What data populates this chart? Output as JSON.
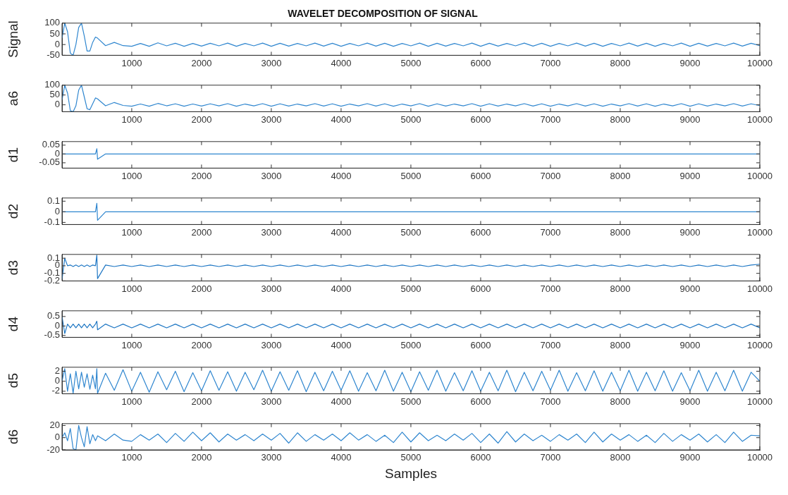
{
  "chart_data": [
    {
      "type": "line",
      "title": "WAVELET DECOMPOSITION OF SIGNAL",
      "ylabel": "Signal",
      "color": "#2f86cf",
      "xlim": [
        1,
        10000
      ],
      "xticks": [
        1000,
        2000,
        3000,
        4000,
        5000,
        6000,
        7000,
        8000,
        9000,
        10000
      ],
      "ylim": [
        -50,
        100
      ],
      "yticks": [
        -50,
        0,
        50,
        100
      ],
      "x": [
        1,
        40,
        80,
        120,
        160,
        200,
        240,
        280,
        320,
        360,
        400,
        440,
        480,
        500,
        510,
        625,
        750,
        875,
        1000,
        1125,
        1250,
        1375,
        1500,
        1625,
        1750,
        1875,
        2000,
        2125,
        2250,
        2375,
        2500,
        2625,
        2750,
        2875,
        3000,
        3125,
        3250,
        3375,
        3500,
        3625,
        3750,
        3875,
        4000,
        4125,
        4250,
        4375,
        4500,
        4625,
        4750,
        4875,
        5000,
        5125,
        5250,
        5375,
        5500,
        5625,
        5750,
        5875,
        6000,
        6125,
        6250,
        6375,
        6500,
        6625,
        6750,
        6875,
        7000,
        7125,
        7250,
        7375,
        7500,
        7625,
        7750,
        7875,
        8000,
        8125,
        8250,
        8375,
        8500,
        8625,
        8750,
        8875,
        9000,
        9125,
        9250,
        9375,
        9500,
        9625,
        9750,
        9875,
        10000
      ],
      "values": [
        30,
        100,
        60,
        -40,
        -50,
        0,
        80,
        100,
        40,
        -30,
        -30,
        10,
        35,
        32,
        30,
        -5,
        10,
        -5,
        -8,
        5,
        -8,
        8,
        -6,
        6,
        -8,
        5,
        -7,
        6,
        -6,
        7,
        -8,
        5,
        -6,
        7,
        -8,
        6,
        -7,
        5,
        -6,
        7,
        -7,
        6,
        -8,
        5,
        -6,
        7,
        -7,
        6,
        -8,
        5,
        -6,
        7,
        -8,
        6,
        -7,
        5,
        -6,
        7,
        -8,
        6,
        -7,
        5,
        -6,
        7,
        -7,
        6,
        -8,
        5,
        -6,
        7,
        -7,
        6,
        -8,
        5,
        -6,
        7,
        -7,
        6,
        -8,
        5,
        -6,
        7,
        -8,
        6,
        -7,
        5,
        -6,
        7,
        -7,
        6,
        -5
      ]
    },
    {
      "type": "line",
      "ylabel": "a6",
      "color": "#2f86cf",
      "xlim": [
        1,
        10000
      ],
      "xticks": [
        1000,
        2000,
        3000,
        4000,
        5000,
        6000,
        7000,
        8000,
        9000,
        10000
      ],
      "ylim": [
        -35,
        100
      ],
      "yticks": [
        0,
        50,
        100
      ],
      "x": [
        1,
        40,
        80,
        120,
        160,
        200,
        240,
        280,
        320,
        360,
        400,
        440,
        480,
        500,
        510,
        625,
        750,
        875,
        1000,
        1125,
        1250,
        1375,
        1500,
        1625,
        1750,
        1875,
        2000,
        2125,
        2250,
        2375,
        2500,
        2625,
        2750,
        2875,
        3000,
        3125,
        3250,
        3375,
        3500,
        3625,
        3750,
        3875,
        4000,
        4125,
        4250,
        4375,
        4500,
        4625,
        4750,
        4875,
        5000,
        5125,
        5250,
        5375,
        5500,
        5625,
        5750,
        5875,
        6000,
        6125,
        6250,
        6375,
        6500,
        6625,
        6750,
        6875,
        7000,
        7125,
        7250,
        7375,
        7500,
        7625,
        7750,
        7875,
        8000,
        8125,
        8250,
        8375,
        8500,
        8625,
        8750,
        8875,
        9000,
        9125,
        9250,
        9375,
        9500,
        9625,
        9750,
        9875,
        10000
      ],
      "values": [
        25,
        100,
        60,
        -30,
        -35,
        -5,
        75,
        100,
        40,
        -20,
        -25,
        5,
        35,
        32,
        30,
        -5,
        12,
        -3,
        -7,
        4,
        -7,
        7,
        -5,
        5,
        -7,
        4,
        -6,
        5,
        -5,
        6,
        -7,
        4,
        -5,
        6,
        -7,
        5,
        -6,
        4,
        -5,
        6,
        -6,
        5,
        -7,
        4,
        -5,
        6,
        -6,
        5,
        -7,
        4,
        -5,
        6,
        -7,
        5,
        -6,
        4,
        -5,
        6,
        -7,
        5,
        -6,
        4,
        -5,
        6,
        -6,
        5,
        -7,
        4,
        -5,
        6,
        -6,
        5,
        -7,
        4,
        -5,
        6,
        -6,
        5,
        -7,
        4,
        -5,
        6,
        -7,
        5,
        -6,
        4,
        -5,
        6,
        -6,
        5,
        -4
      ]
    },
    {
      "type": "line",
      "ylabel": "d1",
      "color": "#2f86cf",
      "xlim": [
        1,
        10000
      ],
      "xticks": [
        1000,
        2000,
        3000,
        4000,
        5000,
        6000,
        7000,
        8000,
        9000,
        10000
      ],
      "ylim": [
        -0.08,
        0.07
      ],
      "yticks": [
        -0.05,
        0,
        0.05
      ],
      "x": [
        1,
        40,
        80,
        120,
        160,
        200,
        240,
        280,
        320,
        360,
        400,
        440,
        480,
        500,
        510,
        625,
        750,
        875,
        1000,
        1125,
        1250,
        1375,
        1500,
        1625,
        1750,
        1875,
        2000,
        2125,
        2250,
        2375,
        2500,
        2625,
        2750,
        2875,
        3000,
        3125,
        3250,
        3375,
        3500,
        3625,
        3750,
        3875,
        4000,
        4125,
        4250,
        4375,
        4500,
        4625,
        4750,
        4875,
        5000,
        5125,
        5250,
        5375,
        5500,
        5625,
        5750,
        5875,
        6000,
        6125,
        6250,
        6375,
        6500,
        6625,
        6750,
        6875,
        7000,
        7125,
        7250,
        7375,
        7500,
        7625,
        7750,
        7875,
        8000,
        8125,
        8250,
        8375,
        8500,
        8625,
        8750,
        8875,
        9000,
        9125,
        9250,
        9375,
        9500,
        9625,
        9750,
        9875,
        10000
      ],
      "values": [
        0,
        0,
        0,
        0,
        0,
        0,
        0,
        0,
        0,
        0,
        0,
        0,
        0,
        0.03,
        -0.03,
        0,
        0,
        0,
        0,
        0,
        0,
        0,
        0,
        0,
        0,
        0,
        0,
        0,
        0,
        0,
        0,
        0,
        0,
        0,
        0,
        0,
        0,
        0,
        0,
        0,
        0,
        0,
        0,
        0,
        0,
        0,
        0,
        0,
        0,
        0,
        0,
        0,
        0,
        0,
        0,
        0,
        0,
        0,
        0,
        0,
        0,
        0,
        0,
        0,
        0,
        0,
        0,
        0,
        0,
        0,
        0,
        0,
        0,
        0,
        0,
        0,
        0,
        0,
        0,
        0,
        0,
        0,
        0,
        0,
        0,
        0,
        0,
        0,
        0,
        0,
        0
      ]
    },
    {
      "type": "line",
      "ylabel": "d2",
      "color": "#2f86cf",
      "xlim": [
        1,
        10000
      ],
      "xticks": [
        1000,
        2000,
        3000,
        4000,
        5000,
        6000,
        7000,
        8000,
        9000,
        10000
      ],
      "ylim": [
        -0.12,
        0.13
      ],
      "yticks": [
        -0.1,
        0,
        0.1
      ],
      "x": [
        1,
        40,
        80,
        120,
        160,
        200,
        240,
        280,
        320,
        360,
        400,
        440,
        480,
        500,
        510,
        625,
        750,
        875,
        1000,
        1125,
        1250,
        1375,
        1500,
        1625,
        1750,
        1875,
        2000,
        2125,
        2250,
        2375,
        2500,
        2625,
        2750,
        2875,
        3000,
        3125,
        3250,
        3375,
        3500,
        3625,
        3750,
        3875,
        4000,
        4125,
        4250,
        4375,
        4500,
        4625,
        4750,
        4875,
        5000,
        5125,
        5250,
        5375,
        5500,
        5625,
        5750,
        5875,
        6000,
        6125,
        6250,
        6375,
        6500,
        6625,
        6750,
        6875,
        7000,
        7125,
        7250,
        7375,
        7500,
        7625,
        7750,
        7875,
        8000,
        8125,
        8250,
        8375,
        8500,
        8625,
        8750,
        8875,
        9000,
        9125,
        9250,
        9375,
        9500,
        9625,
        9750,
        9875,
        10000
      ],
      "values": [
        0,
        0,
        0,
        0,
        0,
        0,
        0,
        0,
        0,
        0,
        0,
        0,
        0,
        0.08,
        -0.08,
        0,
        0,
        0,
        0,
        0,
        0,
        0,
        0,
        0,
        0,
        0,
        0,
        0,
        0,
        0,
        0,
        0,
        0,
        0,
        0,
        0,
        0,
        0,
        0,
        0,
        0,
        0,
        0,
        0,
        0,
        0,
        0,
        0,
        0,
        0,
        0,
        0,
        0,
        0,
        0,
        0,
        0,
        0,
        0,
        0,
        0,
        0,
        0,
        0,
        0,
        0,
        0,
        0,
        0,
        0,
        0,
        0,
        0,
        0,
        0,
        0,
        0,
        0,
        0,
        0,
        0,
        0,
        0,
        0,
        0,
        0,
        0,
        0,
        0,
        0,
        0
      ]
    },
    {
      "type": "line",
      "ylabel": "d3",
      "color": "#1f77c4",
      "xlim": [
        1,
        10000
      ],
      "xticks": [
        1000,
        2000,
        3000,
        4000,
        5000,
        6000,
        7000,
        8000,
        9000,
        10000
      ],
      "ylim": [
        -0.2,
        0.15
      ],
      "yticks": [
        -0.2,
        -0.1,
        0,
        0.1
      ],
      "x": [
        1,
        40,
        80,
        120,
        160,
        200,
        240,
        280,
        320,
        360,
        400,
        440,
        480,
        500,
        510,
        625,
        750,
        875,
        1000,
        1125,
        1250,
        1375,
        1500,
        1625,
        1750,
        1875,
        2000,
        2125,
        2250,
        2375,
        2500,
        2625,
        2750,
        2875,
        3000,
        3125,
        3250,
        3375,
        3500,
        3625,
        3750,
        3875,
        4000,
        4125,
        4250,
        4375,
        4500,
        4625,
        4750,
        4875,
        5000,
        5125,
        5250,
        5375,
        5500,
        5625,
        5750,
        5875,
        6000,
        6125,
        6250,
        6375,
        6500,
        6625,
        6750,
        6875,
        7000,
        7125,
        7250,
        7375,
        7500,
        7625,
        7750,
        7875,
        8000,
        8125,
        8250,
        8375,
        8500,
        8625,
        8750,
        8875,
        9000,
        9125,
        9250,
        9375,
        9500,
        9625,
        9750,
        9875,
        10000
      ],
      "values": [
        -0.18,
        0.1,
        0,
        0.01,
        -0.01,
        0.01,
        -0.01,
        0.01,
        -0.01,
        0.01,
        -0.01,
        0.01,
        0,
        0.14,
        -0.17,
        0.01,
        -0.01,
        0.01,
        -0.01,
        0.01,
        -0.01,
        0.01,
        -0.01,
        0.01,
        -0.01,
        0.01,
        -0.01,
        0.01,
        -0.01,
        0.01,
        -0.01,
        0.01,
        -0.01,
        0.01,
        -0.01,
        0.01,
        -0.01,
        0.01,
        -0.01,
        0.01,
        -0.01,
        0.01,
        -0.01,
        0.01,
        -0.01,
        0.01,
        -0.01,
        0.01,
        -0.01,
        0.01,
        -0.01,
        0.01,
        -0.01,
        0.01,
        -0.01,
        0.01,
        -0.01,
        0.01,
        -0.01,
        0.01,
        -0.01,
        0.01,
        -0.01,
        0.01,
        -0.01,
        0.01,
        -0.01,
        0.01,
        -0.01,
        0.01,
        -0.01,
        0.01,
        -0.01,
        0.01,
        -0.01,
        0.01,
        -0.01,
        0.01,
        -0.01,
        0.01,
        -0.01,
        0.01,
        -0.01,
        0.01,
        -0.01,
        0.01,
        -0.01,
        0.01,
        -0.01,
        0.01,
        0.02
      ]
    },
    {
      "type": "line",
      "ylabel": "d4",
      "color": "#1f77c4",
      "xlim": [
        1,
        10000
      ],
      "xticks": [
        1000,
        2000,
        3000,
        4000,
        5000,
        6000,
        7000,
        8000,
        9000,
        10000
      ],
      "ylim": [
        -0.6,
        0.8
      ],
      "yticks": [
        -0.5,
        0,
        0.5
      ],
      "x": [
        1,
        40,
        80,
        120,
        160,
        200,
        240,
        280,
        320,
        360,
        400,
        440,
        480,
        500,
        510,
        625,
        750,
        875,
        1000,
        1125,
        1250,
        1375,
        1500,
        1625,
        1750,
        1875,
        2000,
        2125,
        2250,
        2375,
        2500,
        2625,
        2750,
        2875,
        3000,
        3125,
        3250,
        3375,
        3500,
        3625,
        3750,
        3875,
        4000,
        4125,
        4250,
        4375,
        4500,
        4625,
        4750,
        4875,
        5000,
        5125,
        5250,
        5375,
        5500,
        5625,
        5750,
        5875,
        6000,
        6125,
        6250,
        6375,
        6500,
        6625,
        6750,
        6875,
        7000,
        7125,
        7250,
        7375,
        7500,
        7625,
        7750,
        7875,
        8000,
        8125,
        8250,
        8375,
        8500,
        8625,
        8750,
        8875,
        9000,
        9125,
        9250,
        9375,
        9500,
        9625,
        9750,
        9875,
        10000
      ],
      "values": [
        0.5,
        -0.4,
        0.1,
        -0.1,
        0.1,
        -0.1,
        0.1,
        -0.1,
        0.1,
        -0.1,
        0.1,
        -0.1,
        0.1,
        0.25,
        -0.2,
        0.1,
        -0.1,
        0.1,
        -0.1,
        0.1,
        -0.1,
        0.1,
        -0.1,
        0.1,
        -0.1,
        0.1,
        -0.1,
        0.1,
        -0.1,
        0.1,
        -0.1,
        0.1,
        -0.1,
        0.1,
        -0.1,
        0.1,
        -0.1,
        0.1,
        -0.1,
        0.1,
        -0.1,
        0.1,
        -0.1,
        0.1,
        -0.1,
        0.1,
        -0.1,
        0.1,
        -0.1,
        0.1,
        -0.1,
        0.1,
        -0.1,
        0.1,
        -0.1,
        0.1,
        -0.1,
        0.1,
        -0.1,
        0.1,
        -0.1,
        0.1,
        -0.1,
        0.1,
        -0.1,
        0.1,
        -0.1,
        0.1,
        -0.1,
        0.1,
        -0.1,
        0.1,
        -0.1,
        0.1,
        -0.1,
        0.1,
        -0.1,
        0.1,
        -0.1,
        0.1,
        -0.1,
        0.1,
        -0.1,
        0.1,
        -0.1,
        0.1,
        -0.1,
        0.1,
        -0.1,
        0.1,
        -0.1
      ]
    },
    {
      "type": "line",
      "ylabel": "d5",
      "color": "#2f86cf",
      "xlim": [
        1,
        10000
      ],
      "xticks": [
        1000,
        2000,
        3000,
        4000,
        5000,
        6000,
        7000,
        8000,
        9000,
        10000
      ],
      "ylim": [
        -2.5,
        2.8
      ],
      "yticks": [
        -2,
        0,
        2
      ],
      "x": [
        1,
        40,
        80,
        120,
        160,
        200,
        240,
        280,
        320,
        360,
        400,
        440,
        480,
        500,
        510,
        625,
        750,
        875,
        1000,
        1125,
        1250,
        1375,
        1500,
        1625,
        1750,
        1875,
        2000,
        2125,
        2250,
        2375,
        2500,
        2625,
        2750,
        2875,
        3000,
        3125,
        3250,
        3375,
        3500,
        3625,
        3750,
        3875,
        4000,
        4125,
        4250,
        4375,
        4500,
        4625,
        4750,
        4875,
        5000,
        5125,
        5250,
        5375,
        5500,
        5625,
        5750,
        5875,
        6000,
        6125,
        6250,
        6375,
        6500,
        6625,
        6750,
        6875,
        7000,
        7125,
        7250,
        7375,
        7500,
        7625,
        7750,
        7875,
        8000,
        8125,
        8250,
        8375,
        8500,
        8625,
        8750,
        8875,
        9000,
        9125,
        9250,
        9375,
        9500,
        9625,
        9750,
        9875,
        10000
      ],
      "values": [
        0,
        2.5,
        -2,
        1.5,
        -2.4,
        2,
        -1.5,
        1.8,
        -1.2,
        1.5,
        -1.6,
        1.2,
        -1.5,
        2.5,
        -2.4,
        1.6,
        -1.8,
        2.3,
        -2,
        1.8,
        -2.2,
        1.9,
        -1.7,
        2,
        -2.1,
        1.7,
        -1.9,
        2.1,
        -1.8,
        1.9,
        -2,
        1.8,
        -1.7,
        2.2,
        -2,
        1.9,
        -1.8,
        2.1,
        -2.1,
        1.8,
        -1.9,
        2,
        -1.8,
        2.1,
        -2,
        1.7,
        -1.9,
        2.2,
        -2,
        1.8,
        -2.1,
        1.9,
        -1.8,
        2.2,
        -2,
        1.7,
        -1.9,
        2.1,
        -2,
        1.8,
        -1.9,
        2.2,
        -2.1,
        1.8,
        -1.9,
        2,
        -1.8,
        2.2,
        -2,
        1.7,
        -1.9,
        2.1,
        -2,
        1.8,
        -1.9,
        2.2,
        -2,
        1.8,
        -1.9,
        2.1,
        -2,
        1.7,
        -1.9,
        2.2,
        -2,
        1.8,
        -1.9,
        2.2,
        -2,
        1.8,
        0
      ]
    },
    {
      "type": "line",
      "ylabel": "d6",
      "xlabel": "Samples",
      "color": "#2f86cf",
      "xlim": [
        1,
        10000
      ],
      "xticks": [
        1000,
        2000,
        3000,
        4000,
        5000,
        6000,
        7000,
        8000,
        9000,
        10000
      ],
      "ylim": [
        -20,
        23
      ],
      "yticks": [
        -20,
        0,
        20
      ],
      "x": [
        1,
        40,
        80,
        120,
        160,
        200,
        240,
        280,
        320,
        360,
        400,
        440,
        480,
        500,
        510,
        625,
        750,
        875,
        1000,
        1125,
        1250,
        1375,
        1500,
        1625,
        1750,
        1875,
        2000,
        2125,
        2250,
        2375,
        2500,
        2625,
        2750,
        2875,
        3000,
        3125,
        3250,
        3375,
        3500,
        3625,
        3750,
        3875,
        4000,
        4125,
        4250,
        4375,
        4500,
        4625,
        4750,
        4875,
        5000,
        5125,
        5250,
        5375,
        5500,
        5625,
        5750,
        5875,
        6000,
        6125,
        6250,
        6375,
        6500,
        6625,
        6750,
        6875,
        7000,
        7125,
        7250,
        7375,
        7500,
        7625,
        7750,
        7875,
        8000,
        8125,
        8250,
        8375,
        8500,
        8625,
        8750,
        8875,
        9000,
        9125,
        9250,
        9375,
        9500,
        9625,
        9750,
        9875,
        10000
      ],
      "values": [
        0,
        8,
        -5,
        15,
        -18,
        -20,
        20,
        0,
        -15,
        18,
        -10,
        5,
        -5,
        0,
        3,
        -5,
        6,
        -4,
        -6,
        5,
        -4,
        6,
        -8,
        7,
        -6,
        9,
        -5,
        8,
        -7,
        6,
        -4,
        5,
        -5,
        6,
        -4,
        7,
        -9,
        8,
        -6,
        5,
        -4,
        6,
        -5,
        8,
        -4,
        5,
        -6,
        4,
        -8,
        9,
        -7,
        8,
        -5,
        4,
        -5,
        6,
        -4,
        7,
        -8,
        6,
        -9,
        10,
        -7,
        6,
        -5,
        4,
        -6,
        5,
        -4,
        6,
        -8,
        9,
        -7,
        6,
        -4,
        5,
        -6,
        4,
        -8,
        7,
        -6,
        5,
        -4,
        6,
        -7,
        5,
        -8,
        9,
        -6,
        4,
        3
      ]
    }
  ]
}
